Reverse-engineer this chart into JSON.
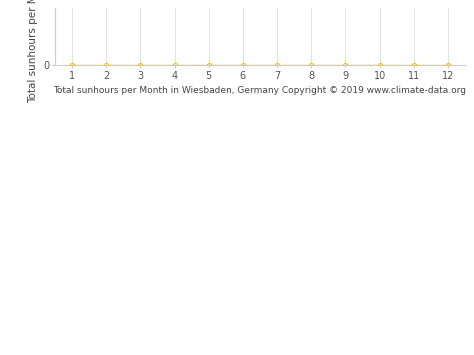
{
  "x": [
    1,
    2,
    3,
    4,
    5,
    6,
    7,
    8,
    9,
    10,
    11,
    12
  ],
  "y": [
    0,
    0,
    0,
    0,
    0,
    0,
    0,
    0,
    0,
    0,
    0,
    0
  ],
  "line_color": "#f5c518",
  "marker_color": "#f5c518",
  "marker_style": "o",
  "marker_size": 3,
  "line_width": 1.0,
  "xlabel": "Total sunhours per Month in Wiesbaden, Germany Copyright © 2019 www.climate-data.org",
  "ylabel": "Total sunhours per Month",
  "xlim": [
    0.5,
    12.5
  ],
  "ylim": [
    0,
    300
  ],
  "yticks": [
    0
  ],
  "xticks": [
    1,
    2,
    3,
    4,
    5,
    6,
    7,
    8,
    9,
    10,
    11,
    12
  ],
  "grid_color": "#e0e0e0",
  "background_color": "#ffffff",
  "xlabel_fontsize": 6.5,
  "ylabel_fontsize": 7.5,
  "tick_fontsize": 7
}
